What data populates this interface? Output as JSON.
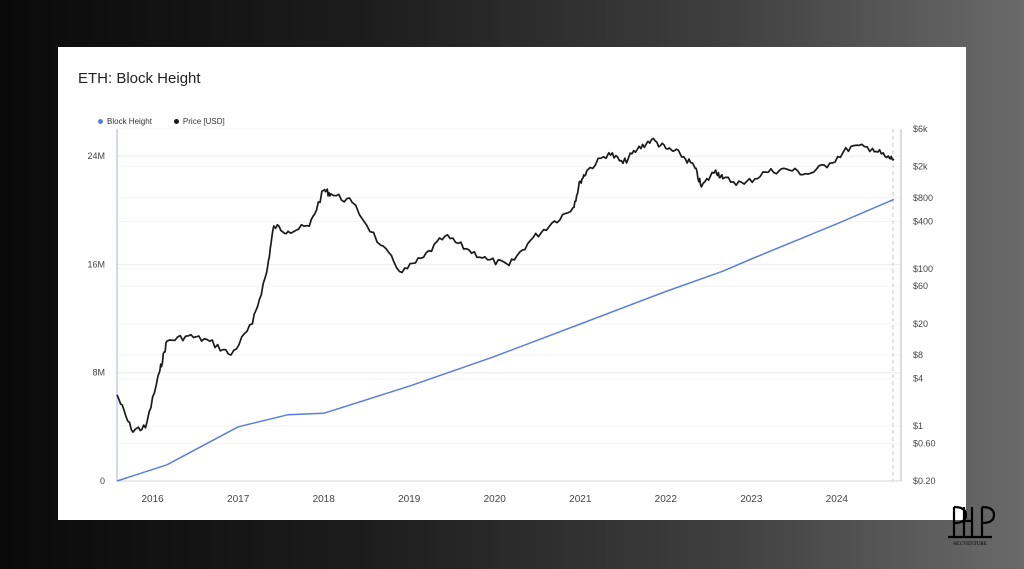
{
  "chart_data": {
    "type": "line",
    "title": "ETH: Block Height",
    "legend": {
      "placement": "top-left"
    },
    "grid": true,
    "series": [
      {
        "name": "Block Height",
        "color": "#5b7fd9",
        "axis": "left",
        "x": [
          "2015-08",
          "2016-03",
          "2017-01",
          "2017-08",
          "2018-01",
          "2019-01",
          "2020-01",
          "2021-01",
          "2022-01",
          "2022-09",
          "2023-01",
          "2024-01",
          "2024-09"
        ],
        "values": [
          0,
          1200000,
          4000000,
          4900000,
          5000000,
          7000000,
          9200000,
          11600000,
          14000000,
          15500000,
          16400000,
          19000000,
          20800000
        ]
      },
      {
        "name": "Price [USD]",
        "color": "#1a1a1a",
        "axis": "right",
        "scale": "log",
        "x": [
          "2015-08",
          "2015-10",
          "2015-12",
          "2016-02",
          "2016-03",
          "2016-06",
          "2016-09",
          "2016-12",
          "2017-03",
          "2017-05",
          "2017-06",
          "2017-08",
          "2017-11",
          "2018-01",
          "2018-02",
          "2018-05",
          "2018-09",
          "2018-12",
          "2019-03",
          "2019-06",
          "2019-09",
          "2019-12",
          "2020-03",
          "2020-06",
          "2020-09",
          "2020-12",
          "2021-01",
          "2021-02",
          "2021-05",
          "2021-07",
          "2021-09",
          "2021-11",
          "2022-01",
          "2022-03",
          "2022-05",
          "2022-06",
          "2022-08",
          "2022-09",
          "2022-12",
          "2023-03",
          "2023-06",
          "2023-09",
          "2023-12",
          "2024-03",
          "2024-06",
          "2024-08",
          "2024-09"
        ],
        "values": [
          2.5,
          0.9,
          0.95,
          5.0,
          12,
          14,
          12,
          8,
          20,
          90,
          350,
          300,
          350,
          1000,
          900,
          700,
          200,
          90,
          140,
          260,
          180,
          130,
          110,
          230,
          380,
          600,
          1300,
          1800,
          3000,
          2200,
          3300,
          4400,
          3400,
          2900,
          2000,
          1100,
          1800,
          1400,
          1200,
          1700,
          1850,
          1600,
          2200,
          3600,
          3400,
          2600,
          2500
        ]
      }
    ],
    "x_axis": {
      "type": "date",
      "range": [
        "2015-08",
        "2024-10"
      ],
      "ticks": [
        "2016",
        "2017",
        "2018",
        "2019",
        "2020",
        "2021",
        "2022",
        "2023",
        "2024"
      ]
    },
    "y_left": {
      "range": [
        0,
        26000000
      ],
      "ticks": [
        "0",
        "8M",
        "16M",
        "24M"
      ],
      "tick_values": [
        0,
        8000000,
        16000000,
        24000000
      ]
    },
    "y_right": {
      "scale": "log",
      "range": [
        0.2,
        6000
      ],
      "ticks": [
        "$6k",
        "$2k",
        "$800",
        "$400",
        "$100",
        "$60",
        "$20",
        "$8",
        "$4",
        "$1",
        "$0.60",
        "$0.20"
      ],
      "tick_values": [
        6000,
        2000,
        800,
        400,
        100,
        60,
        20,
        8,
        4,
        1,
        0.6,
        0.2
      ]
    }
  },
  "watermark": {
    "text": "HCCVENTURE"
  }
}
